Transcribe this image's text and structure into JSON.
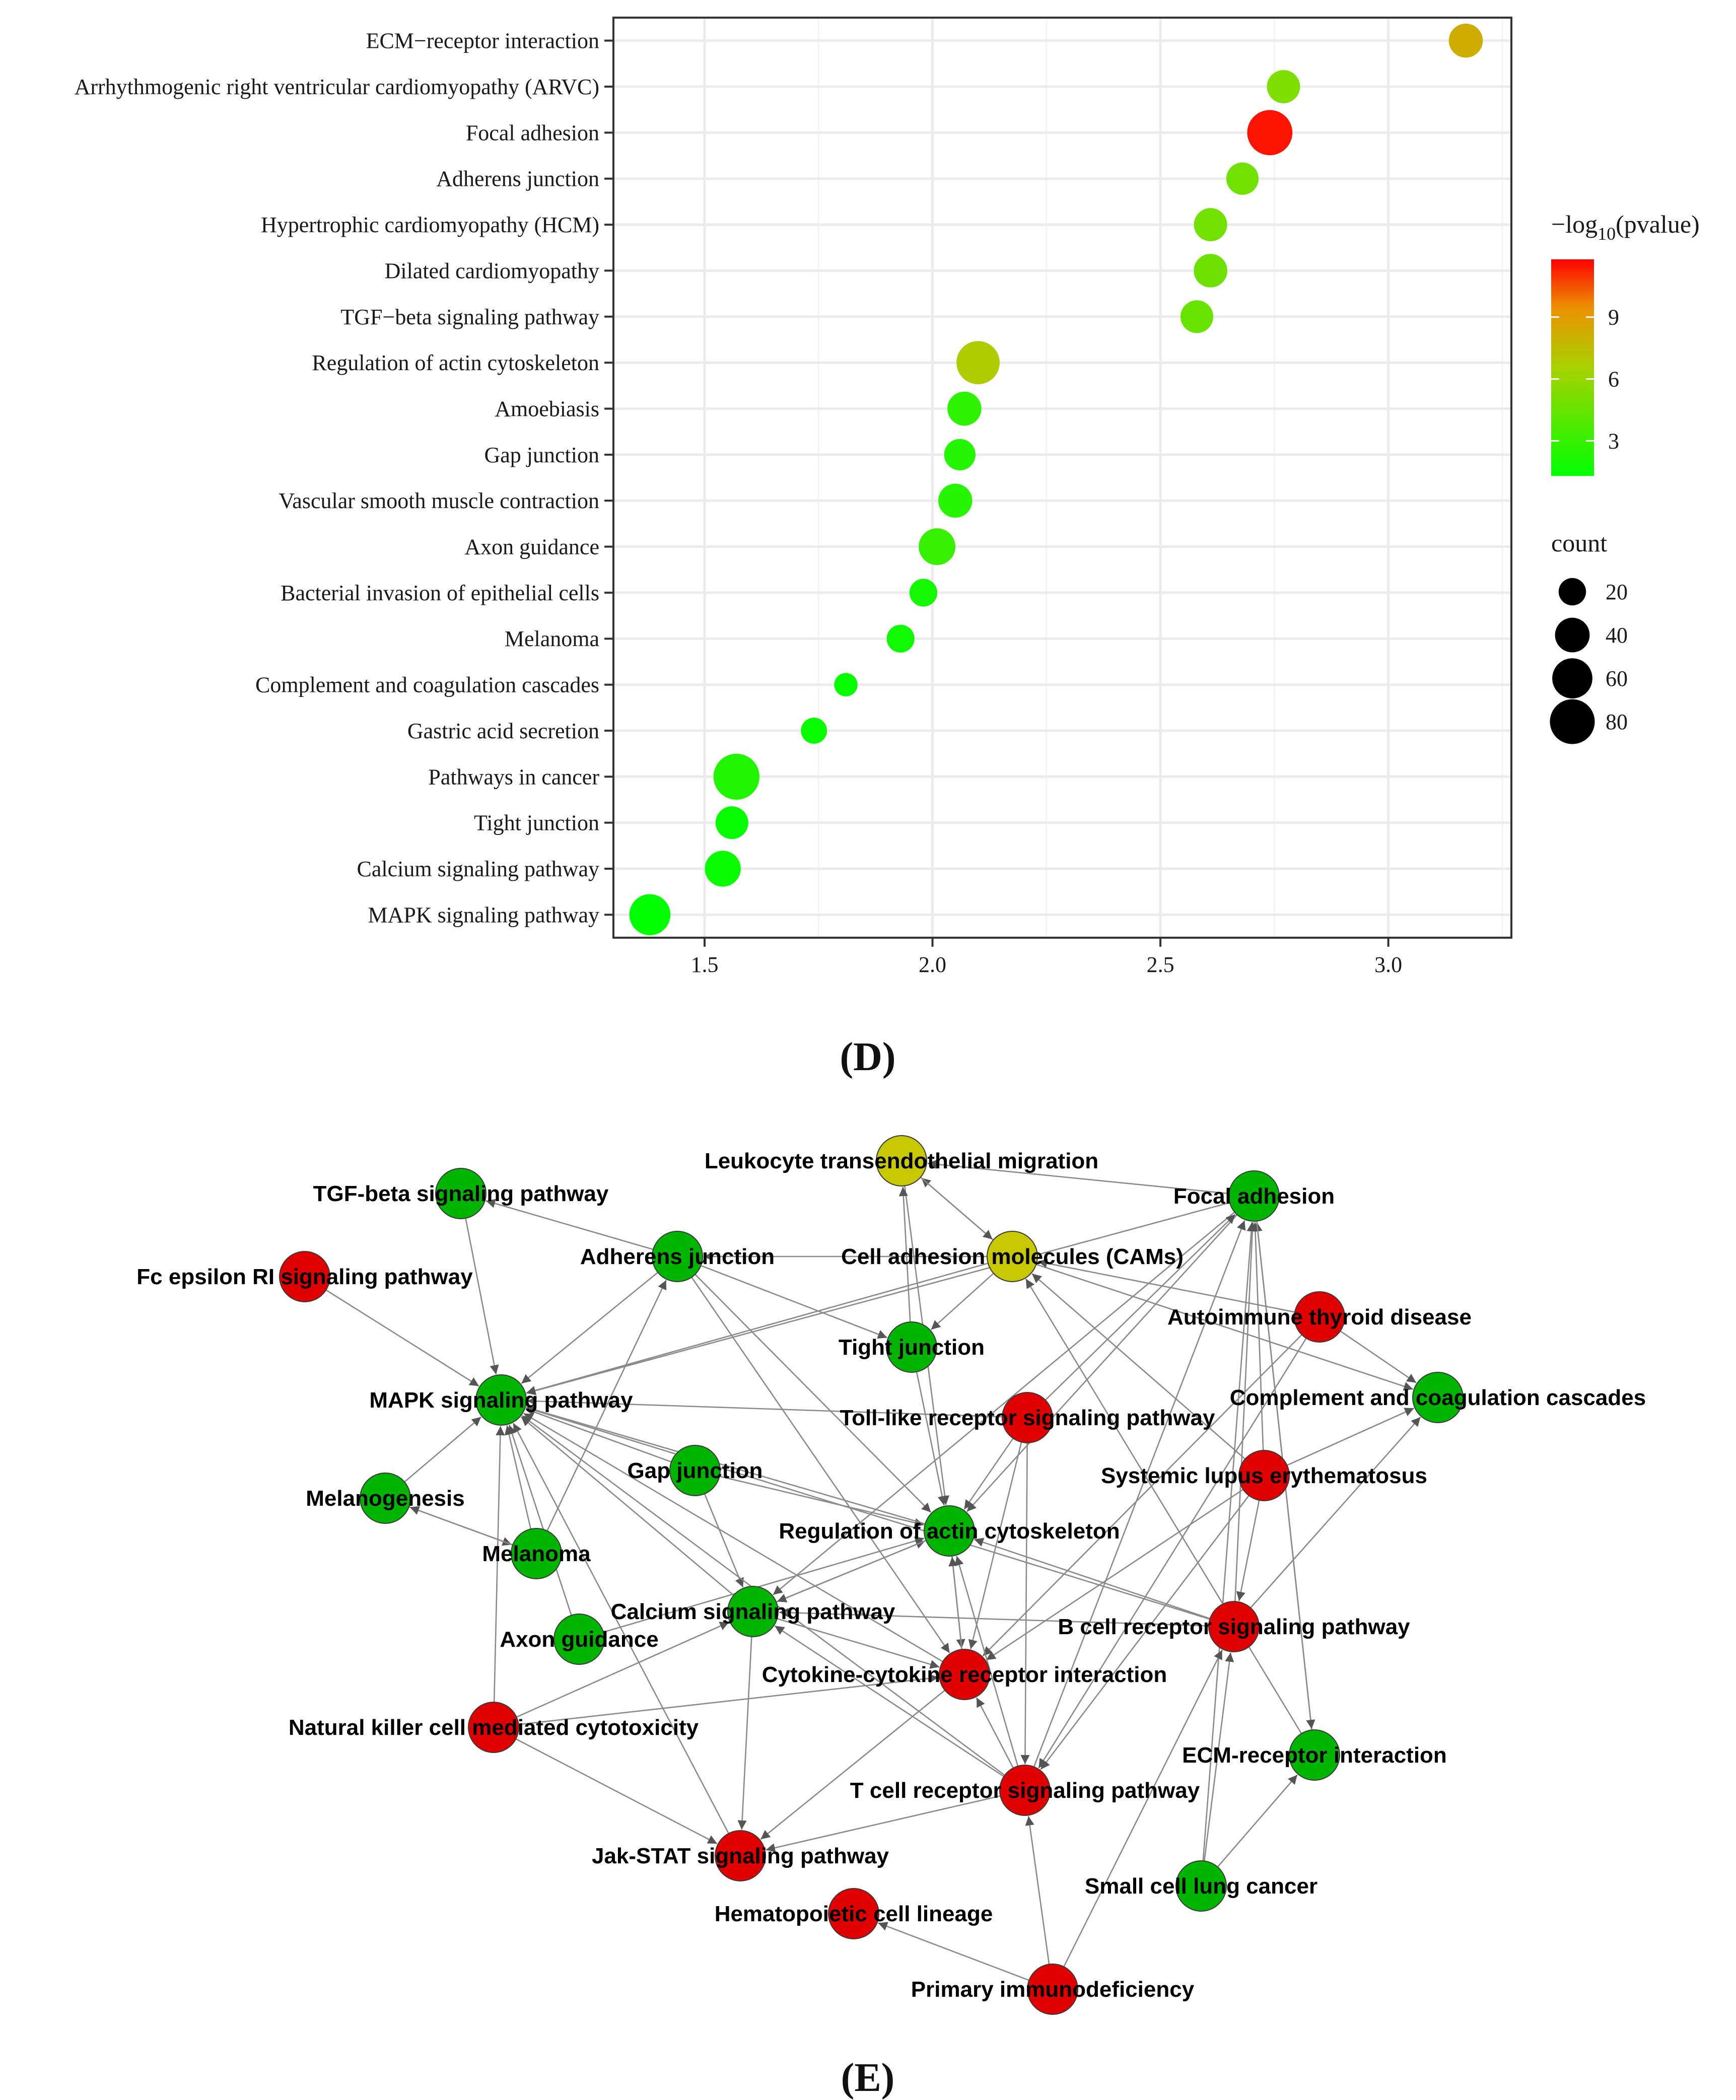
{
  "panel_d": {
    "letter": "(D)",
    "chart_data": {
      "type": "scatter",
      "subtype": "bubble",
      "title": "",
      "xlabel": "",
      "ylabel": "",
      "xlim": [
        1.3,
        3.27
      ],
      "x_ticks": [
        1.5,
        2.0,
        2.5,
        3.0
      ],
      "x_tick_labels": [
        "1.5",
        "2.0",
        "2.5",
        "3.0"
      ],
      "grid": true,
      "categories": [
        "ECM−receptor interaction",
        "Arrhythmogenic right ventricular cardiomyopathy (ARVC)",
        "Focal adhesion",
        "Adherens junction",
        "Hypertrophic cardiomyopathy (HCM)",
        "Dilated cardiomyopathy",
        "TGF−beta signaling pathway",
        "Regulation of actin cytoskeleton",
        "Amoebiasis",
        "Gap junction",
        "Vascular smooth muscle contraction",
        "Axon guidance",
        "Bacterial invasion of epithelial cells",
        "Melanoma",
        "Complement and coagulation cascades",
        "Gastric acid secretion",
        "Pathways in cancer",
        "Tight junction",
        "Calcium signaling pathway",
        "MAPK signaling pathway"
      ],
      "points": [
        {
          "term": "ECM−receptor interaction",
          "x": 3.17,
          "count": 28,
          "neglog10p": 8.2
        },
        {
          "term": "Arrhythmogenic right ventricular cardiomyopathy (ARVC)",
          "x": 2.77,
          "count": 26,
          "neglog10p": 5.2
        },
        {
          "term": "Focal adhesion",
          "x": 2.74,
          "count": 62,
          "neglog10p": 11.5
        },
        {
          "term": "Adherens junction",
          "x": 2.68,
          "count": 24,
          "neglog10p": 4.8
        },
        {
          "term": "Hypertrophic cardiomyopathy (HCM)",
          "x": 2.61,
          "count": 26,
          "neglog10p": 4.8
        },
        {
          "term": "Dilated cardiomyopathy",
          "x": 2.61,
          "count": 27,
          "neglog10p": 4.7
        },
        {
          "term": "TGF−beta signaling pathway",
          "x": 2.58,
          "count": 25,
          "neglog10p": 4.5
        },
        {
          "term": "Regulation of actin cytoskeleton",
          "x": 2.1,
          "count": 55,
          "neglog10p": 6.8
        },
        {
          "term": "Amoebiasis",
          "x": 2.07,
          "count": 28,
          "neglog10p": 2.7
        },
        {
          "term": "Gap junction",
          "x": 2.06,
          "count": 22,
          "neglog10p": 2.4
        },
        {
          "term": "Vascular smooth muscle contraction",
          "x": 2.05,
          "count": 28,
          "neglog10p": 2.5
        },
        {
          "term": "Axon guidance",
          "x": 2.01,
          "count": 35,
          "neglog10p": 3.0
        },
        {
          "term": "Bacterial invasion of epithelial cells",
          "x": 1.98,
          "count": 15,
          "neglog10p": 1.9
        },
        {
          "term": "Melanoma",
          "x": 1.93,
          "count": 15,
          "neglog10p": 1.8
        },
        {
          "term": "Complement and coagulation cascades",
          "x": 1.81,
          "count": 8,
          "neglog10p": 1.5
        },
        {
          "term": "Gastric acid secretion",
          "x": 1.74,
          "count": 12,
          "neglog10p": 1.5
        },
        {
          "term": "Pathways in cancer",
          "x": 1.57,
          "count": 65,
          "neglog10p": 2.3
        },
        {
          "term": "Tight junction",
          "x": 1.56,
          "count": 25,
          "neglog10p": 1.5
        },
        {
          "term": "Calcium signaling pathway",
          "x": 1.54,
          "count": 33,
          "neglog10p": 1.6
        },
        {
          "term": "MAPK signaling pathway",
          "x": 1.38,
          "count": 48,
          "neglog10p": 1.3
        }
      ],
      "color_legend": {
        "title_prefix": "−log",
        "title_sub": "10",
        "title_suffix": "(pvalue)",
        "ticks": [
          "9",
          "6",
          "3"
        ],
        "tick_values": [
          9,
          6,
          3
        ],
        "range": [
          1.3,
          11.8
        ],
        "low_color": "#00ff00",
        "high_color": "#ff0000"
      },
      "size_legend": {
        "title": "count",
        "labels": [
          "20",
          "40",
          "60",
          "80"
        ],
        "values": [
          20,
          40,
          60,
          80
        ]
      },
      "colors": {
        "grid": "#ebebeb",
        "axis": "#333333",
        "text": "#1a1a1a"
      }
    }
  },
  "panel_e": {
    "letter": "(E)",
    "colors": {
      "red": "#e00000",
      "green": "#00b500",
      "yellow": "#c8c800",
      "edge": "#8a8a8a"
    },
    "nodes": {
      "leuk": {
        "label": "Leukocyte transendothelial migration",
        "color": "yellow"
      },
      "tgfb": {
        "label": "TGF-beta signaling pathway",
        "color": "green"
      },
      "focal": {
        "label": "Focal adhesion",
        "color": "green"
      },
      "fceps": {
        "label": "Fc epsilon RI signaling pathway",
        "color": "red"
      },
      "adh": {
        "label": "Adherens junction",
        "color": "green"
      },
      "cams": {
        "label": "Cell adhesion molecules (CAMs)",
        "color": "yellow"
      },
      "autoimm": {
        "label": "Autoimmune thyroid disease",
        "color": "red"
      },
      "tight": {
        "label": "Tight junction",
        "color": "green"
      },
      "mapk": {
        "label": "MAPK signaling pathway",
        "color": "green"
      },
      "toll": {
        "label": "Toll-like receptor signaling pathway",
        "color": "red"
      },
      "compl": {
        "label": "Complement and coagulation cascades",
        "color": "green"
      },
      "gap": {
        "label": "Gap junction",
        "color": "green"
      },
      "sle": {
        "label": "Systemic lupus erythematosus",
        "color": "red"
      },
      "melano": {
        "label": "Melanogenesis",
        "color": "green"
      },
      "reg": {
        "label": "Regulation of actin cytoskeleton",
        "color": "green"
      },
      "melanoma": {
        "label": "Melanoma",
        "color": "green"
      },
      "calcium": {
        "label": "Calcium signaling pathway",
        "color": "green"
      },
      "bcell": {
        "label": "B cell receptor signaling pathway",
        "color": "red"
      },
      "axon": {
        "label": "Axon guidance",
        "color": "green"
      },
      "cytok": {
        "label": "Cytokine-cytokine receptor interaction",
        "color": "red"
      },
      "nk": {
        "label": "Natural killer cell mediated cytotoxicity",
        "color": "red"
      },
      "ecm": {
        "label": "ECM-receptor interaction",
        "color": "green"
      },
      "tcell": {
        "label": "T cell receptor signaling pathway",
        "color": "red"
      },
      "jak": {
        "label": "Jak-STAT signaling pathway",
        "color": "red"
      },
      "sclc": {
        "label": "Small cell lung cancer",
        "color": "green"
      },
      "hema": {
        "label": "Hematopoietic cell lineage",
        "color": "red"
      },
      "pid": {
        "label": "Primary immunodeficiency",
        "color": "red"
      }
    },
    "edges": [
      [
        "tgfb",
        "mapk"
      ],
      [
        "fceps",
        "mapk"
      ],
      [
        "adh",
        "tgfb"
      ],
      [
        "adh",
        "mapk"
      ],
      [
        "adh",
        "tight"
      ],
      [
        "adh",
        "reg"
      ],
      [
        "adh",
        "cytok"
      ],
      [
        "cams",
        "adh"
      ],
      [
        "cams",
        "tight"
      ],
      [
        "cams",
        "mapk"
      ],
      [
        "cams",
        "leuk"
      ],
      [
        "cams",
        "compl"
      ],
      [
        "leuk",
        "cams"
      ],
      [
        "leuk",
        "reg"
      ],
      [
        "tight",
        "reg"
      ],
      [
        "tight",
        "leuk"
      ],
      [
        "focal",
        "leuk"
      ],
      [
        "focal",
        "mapk"
      ],
      [
        "focal",
        "reg"
      ],
      [
        "focal",
        "calcium"
      ],
      [
        "autoimm",
        "cams"
      ],
      [
        "autoimm",
        "cytok"
      ],
      [
        "autoimm",
        "compl"
      ],
      [
        "toll",
        "mapk"
      ],
      [
        "toll",
        "cytok"
      ],
      [
        "toll",
        "tcell"
      ],
      [
        "toll",
        "reg"
      ],
      [
        "sle",
        "cams"
      ],
      [
        "sle",
        "compl"
      ],
      [
        "sle",
        "cytok"
      ],
      [
        "sle",
        "tcell"
      ],
      [
        "sle",
        "focal"
      ],
      [
        "gap",
        "mapk"
      ],
      [
        "gap",
        "reg"
      ],
      [
        "gap",
        "calcium"
      ],
      [
        "melano",
        "mapk"
      ],
      [
        "melano",
        "melanoma"
      ],
      [
        "melanoma",
        "mapk"
      ],
      [
        "melanoma",
        "adh"
      ],
      [
        "melanoma",
        "melano"
      ],
      [
        "axon",
        "mapk"
      ],
      [
        "axon",
        "reg"
      ],
      [
        "calcium",
        "mapk"
      ],
      [
        "calcium",
        "cytok"
      ],
      [
        "calcium",
        "reg"
      ],
      [
        "calcium",
        "jak"
      ],
      [
        "reg",
        "mapk"
      ],
      [
        "reg",
        "calcium"
      ],
      [
        "reg",
        "cytok"
      ],
      [
        "bcell",
        "mapk"
      ],
      [
        "bcell",
        "reg"
      ],
      [
        "bcell",
        "focal"
      ],
      [
        "bcell",
        "calcium"
      ],
      [
        "bcell",
        "compl"
      ],
      [
        "cytok",
        "mapk"
      ],
      [
        "cytok",
        "jak"
      ],
      [
        "cytok",
        "reg"
      ],
      [
        "nk",
        "mapk"
      ],
      [
        "nk",
        "jak"
      ],
      [
        "nk",
        "cytok"
      ],
      [
        "nk",
        "calcium"
      ],
      [
        "tcell",
        "mapk"
      ],
      [
        "tcell",
        "jak"
      ],
      [
        "tcell",
        "cytok"
      ],
      [
        "tcell",
        "focal"
      ],
      [
        "tcell",
        "reg"
      ],
      [
        "tcell",
        "calcium"
      ],
      [
        "ecm",
        "focal"
      ],
      [
        "ecm",
        "cams"
      ],
      [
        "sclc",
        "ecm"
      ],
      [
        "sclc",
        "bcell"
      ],
      [
        "sclc",
        "focal"
      ],
      [
        "pid",
        "tcell"
      ],
      [
        "pid",
        "hema"
      ],
      [
        "pid",
        "bcell"
      ],
      [
        "jak",
        "mapk"
      ],
      [
        "focal",
        "ecm"
      ],
      [
        "sle",
        "bcell"
      ],
      [
        "toll",
        "focal"
      ],
      [
        "autoimm",
        "tcell"
      ]
    ]
  }
}
